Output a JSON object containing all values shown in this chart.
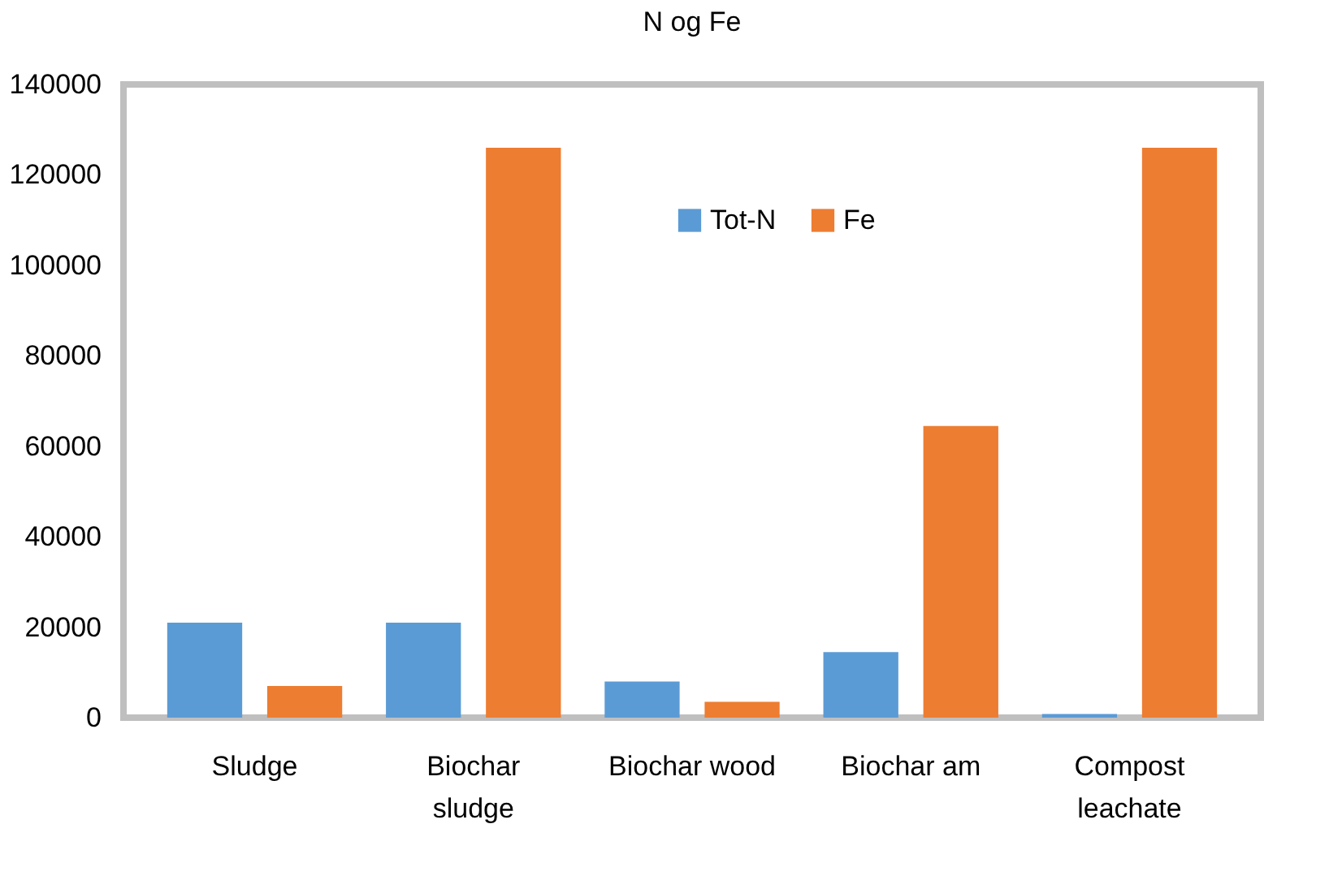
{
  "chart_data": {
    "type": "bar",
    "title": "N og Fe",
    "categories": [
      "Sludge",
      "Biochar\nsludge",
      "Biochar wood",
      "Biochar am",
      "Compost\nleachate"
    ],
    "series": [
      {
        "name": "Tot-N",
        "color": "#5b9bd5",
        "values": [
          21000,
          21000,
          8000,
          14500,
          800
        ]
      },
      {
        "name": "Fe",
        "color": "#ed7d31",
        "values": [
          7000,
          126000,
          3500,
          64500,
          126000
        ]
      }
    ],
    "ylim": [
      0,
      140000
    ],
    "yticks": [
      0,
      20000,
      40000,
      60000,
      80000,
      100000,
      120000,
      140000
    ],
    "grid": false,
    "legend": "top"
  }
}
